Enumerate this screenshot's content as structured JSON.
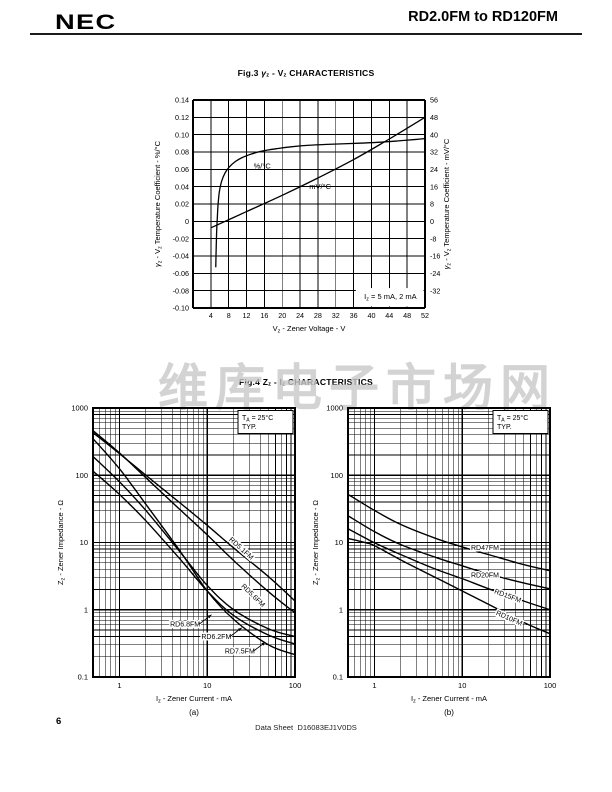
{
  "header": {
    "logo": "NEC",
    "title": "RD2.0FM to RD120FM"
  },
  "watermark": {
    "text": "维库电子市场网",
    "color": "#c9c9c9"
  },
  "footer": {
    "page_number": "6",
    "doc_ref": "Data Sheet  D16083EJ1V0DS"
  },
  "fig4": {
    "title": "Fig.4  Zz - Iz CHARACTERISTICS",
    "title_segments": [
      [
        "Fig.4  Z"
      ],
      [
        "z",
        "sub"
      ],
      [
        " - I"
      ],
      [
        "z",
        "sub"
      ],
      [
        " CHARACTERISTICS"
      ]
    ]
  },
  "chart_data": [
    {
      "id": "fig3",
      "type": "line",
      "title": "Fig.3  γz - Vz CHARACTERISTICS",
      "title_segments": [
        [
          "Fig.3  "
        ],
        [
          "γ",
          "i"
        ],
        [
          "z",
          "sub"
        ],
        [
          " - V"
        ],
        [
          "z",
          "sub"
        ],
        [
          " CHARACTERISTICS"
        ]
      ],
      "xlabel": "Vz - Zener Voltage - V",
      "xlabel_segments": [
        [
          "V"
        ],
        [
          "z",
          "sub"
        ],
        [
          " - Zener Voltage - V"
        ]
      ],
      "ylabel_left": "γz - Vz Temperature Coefficient - %/°C",
      "ylabel_left_segments": [
        [
          "γ",
          "i"
        ],
        [
          "z",
          "sub"
        ],
        [
          " - V"
        ],
        [
          "z",
          "sub"
        ],
        [
          " Temperature Coefficient - %/°C"
        ]
      ],
      "ylabel_right": "γz - Vz Temperature Coefficient - mV/°C",
      "ylabel_right_segments": [
        [
          "γ",
          "i"
        ],
        [
          "z",
          "sub"
        ],
        [
          " - V"
        ],
        [
          "z",
          "sub"
        ],
        [
          " Temperature Coefficient - mV/°C"
        ]
      ],
      "xlim": [
        0,
        52
      ],
      "xticks": [
        4,
        8,
        12,
        16,
        20,
        24,
        28,
        32,
        36,
        40,
        44,
        48,
        52
      ],
      "ylim_left": [
        -0.1,
        0.14
      ],
      "yticks_left": [
        "0.14",
        "0.12",
        "0.10",
        "0.08",
        "0.06",
        "0.04",
        "0.02",
        "0",
        "-0.02",
        "-0.04",
        "-0.06",
        "-0.08",
        "-0.10"
      ],
      "ylim_right": [
        -40,
        56
      ],
      "yticks_right": [
        "56",
        "48",
        "40",
        "32",
        "24",
        "16",
        "8",
        "0",
        "-8",
        "-16",
        "-24",
        "-32"
      ],
      "grid": true,
      "annotation": "Iz = 5 mA, 2 mA",
      "annotation_segments": [
        [
          "I"
        ],
        [
          "z",
          "sub"
        ],
        [
          " = 5 mA, 2 mA"
        ]
      ],
      "series": [
        {
          "name": "%/°C",
          "axis": "left",
          "label_at": [
            15.5,
            0.064
          ],
          "points": [
            [
              5.1,
              -0.053
            ],
            [
              5.2,
              -0.03
            ],
            [
              5.3,
              -0.012
            ],
            [
              5.45,
              0.004
            ],
            [
              5.6,
              0.018
            ],
            [
              5.9,
              0.034
            ],
            [
              6.4,
              0.046
            ],
            [
              7.2,
              0.056
            ],
            [
              8.2,
              0.063
            ],
            [
              9.5,
              0.069
            ],
            [
              11,
              0.0735
            ],
            [
              13,
              0.0775
            ],
            [
              15,
              0.0805
            ],
            [
              17,
              0.0825
            ],
            [
              19,
              0.084
            ],
            [
              22,
              0.086
            ],
            [
              26,
              0.0878
            ],
            [
              30,
              0.0888
            ],
            [
              34,
              0.0895
            ],
            [
              38,
              0.0903
            ],
            [
              42,
              0.0913
            ],
            [
              46,
              0.0928
            ],
            [
              50,
              0.0945
            ],
            [
              52,
              0.0955
            ]
          ]
        },
        {
          "name": "mV/°C",
          "axis": "right",
          "label_at": [
            28.5,
            16.0
          ],
          "points": [
            [
              4.0,
              -3
            ],
            [
              12,
              4.5
            ],
            [
              20,
              12
            ],
            [
              28,
              20
            ],
            [
              36,
              28.5
            ],
            [
              44,
              38
            ],
            [
              52,
              48
            ]
          ]
        }
      ]
    },
    {
      "id": "fig4a",
      "type": "line",
      "x_scale": "log",
      "y_scale": "log",
      "caption": "(a)",
      "condition": "TA = 25°C TYP.",
      "condition_segments": [
        [
          [
            "T"
          ],
          [
            "A",
            "sub"
          ],
          [
            " = 25°C"
          ]
        ],
        [
          [
            "TYP."
          ]
        ]
      ],
      "xlabel": "Iz - Zener Current - mA",
      "xlabel_segments": [
        [
          "I"
        ],
        [
          "z",
          "sub"
        ],
        [
          " - Zener Current - mA"
        ]
      ],
      "ylabel": "Zz - Zener Impedance - Ω",
      "ylabel_segments": [
        [
          "Z"
        ],
        [
          "z",
          "sub"
        ],
        [
          " - Zener Impedance - Ω"
        ]
      ],
      "xlim": [
        0.5,
        100
      ],
      "ylim": [
        0.1,
        1000
      ],
      "xticks": [
        "1",
        "10",
        "100"
      ],
      "yticks": [
        "0.1",
        "1",
        "10",
        "100",
        "1000"
      ],
      "grid": true,
      "series": [
        {
          "name": "RD5.1FM",
          "label_at": [
            23.5,
            7.7
          ],
          "label_rot": 42,
          "points": [
            [
              0.5,
              430
            ],
            [
              1,
              210
            ],
            [
              2,
              100
            ],
            [
              5,
              38
            ],
            [
              10,
              18
            ],
            [
              20,
              8.3
            ],
            [
              50,
              3.1
            ],
            [
              100,
              1.35
            ]
          ]
        },
        {
          "name": "RD5.6FM",
          "label_at": [
            32,
            1.55
          ],
          "label_rot": 44,
          "points": [
            [
              0.5,
              460
            ],
            [
              1,
              215
            ],
            [
              2,
              92
            ],
            [
              5,
              30
            ],
            [
              10,
              13
            ],
            [
              20,
              5.4
            ],
            [
              50,
              1.85
            ],
            [
              100,
              0.9
            ]
          ]
        },
        {
          "name": "RD6.8FM",
          "label_at": [
            5.6,
            0.56
          ],
          "label_rot": 0,
          "leader": [
            13,
            10
          ],
          "points": [
            [
              0.5,
              190
            ],
            [
              1,
              80
            ],
            [
              2,
              30
            ],
            [
              5,
              7
            ],
            [
              10,
              2.3
            ],
            [
              20,
              1.0
            ],
            [
              50,
              0.52
            ],
            [
              100,
              0.4
            ]
          ]
        },
        {
          "name": "RD6.2FM",
          "label_at": [
            12.7,
            0.37
          ],
          "label_rot": 0,
          "leader": [
            12,
            9
          ],
          "points": [
            [
              0.5,
              115
            ],
            [
              1,
              52
            ],
            [
              2,
              21
            ],
            [
              5,
              5.5
            ],
            [
              10,
              1.9
            ],
            [
              20,
              0.82
            ],
            [
              50,
              0.42
            ],
            [
              100,
              0.31
            ]
          ]
        },
        {
          "name": "RD7.5FM",
          "label_at": [
            23.5,
            0.225
          ],
          "label_rot": 0,
          "leader": [
            12,
            9
          ],
          "points": [
            [
              0.5,
              350
            ],
            [
              1,
              125
            ],
            [
              2,
              37
            ],
            [
              5,
              7.2
            ],
            [
              10,
              1.9
            ],
            [
              20,
              0.72
            ],
            [
              50,
              0.3
            ],
            [
              100,
              0.215
            ]
          ]
        }
      ]
    },
    {
      "id": "fig4b",
      "type": "line",
      "x_scale": "log",
      "y_scale": "log",
      "caption": "(b)",
      "condition": "TA = 25°C TYP.",
      "condition_segments": [
        [
          [
            "T"
          ],
          [
            "A",
            "sub"
          ],
          [
            " = 25°C"
          ]
        ],
        [
          [
            "TYP."
          ]
        ]
      ],
      "xlabel": "Iz - Zener Current - mA",
      "xlabel_segments": [
        [
          "I"
        ],
        [
          "z",
          "sub"
        ],
        [
          " - Zener Current - mA"
        ]
      ],
      "ylabel": "Zz - Zener Impedance - Ω",
      "ylabel_segments": [
        [
          "Z"
        ],
        [
          "z",
          "sub"
        ],
        [
          " - Zener Impedance - Ω"
        ]
      ],
      "xlim": [
        0.5,
        100
      ],
      "ylim": [
        0.1,
        1000
      ],
      "xticks": [
        "1",
        "10",
        "100"
      ],
      "yticks": [
        "0.1",
        "1",
        "10",
        "100",
        "1000"
      ],
      "grid": true,
      "series": [
        {
          "name": "RD47FM",
          "label_at": [
            18.2,
            7.7
          ],
          "label_rot": 0,
          "points": [
            [
              0.5,
              52
            ],
            [
              1,
              30
            ],
            [
              2,
              18.5
            ],
            [
              5,
              11.5
            ],
            [
              10,
              8.6
            ],
            [
              20,
              6.6
            ],
            [
              50,
              4.7
            ],
            [
              100,
              3.8
            ]
          ]
        },
        {
          "name": "RD20FM",
          "label_at": [
            18.2,
            3.0
          ],
          "label_rot": 0,
          "points": [
            [
              0.5,
              25
            ],
            [
              1,
              14.5
            ],
            [
              2,
              9.3
            ],
            [
              5,
              6.0
            ],
            [
              10,
              4.5
            ],
            [
              20,
              3.4
            ],
            [
              50,
              2.5
            ],
            [
              100,
              2.05
            ]
          ]
        },
        {
          "name": "RD15FM",
          "label_at": [
            32.4,
            1.5
          ],
          "label_rot": 20,
          "points": [
            [
              0.5,
              16
            ],
            [
              0.8,
              11.5
            ],
            [
              1,
              9.9
            ],
            [
              2,
              6.6
            ],
            [
              5,
              4.0
            ],
            [
              10,
              2.9
            ],
            [
              20,
              2.05
            ],
            [
              50,
              1.35
            ],
            [
              100,
              1.0
            ]
          ]
        },
        {
          "name": "RD10FM",
          "label_at": [
            33.5,
            0.7
          ],
          "label_rot": 24,
          "points": [
            [
              0.5,
              11.5
            ],
            [
              0.8,
              9.9
            ],
            [
              1,
              9.0
            ],
            [
              2,
              5.5
            ],
            [
              5,
              3.0
            ],
            [
              10,
              1.9
            ],
            [
              20,
              1.2
            ],
            [
              50,
              0.65
            ],
            [
              100,
              0.44
            ]
          ]
        }
      ]
    }
  ]
}
